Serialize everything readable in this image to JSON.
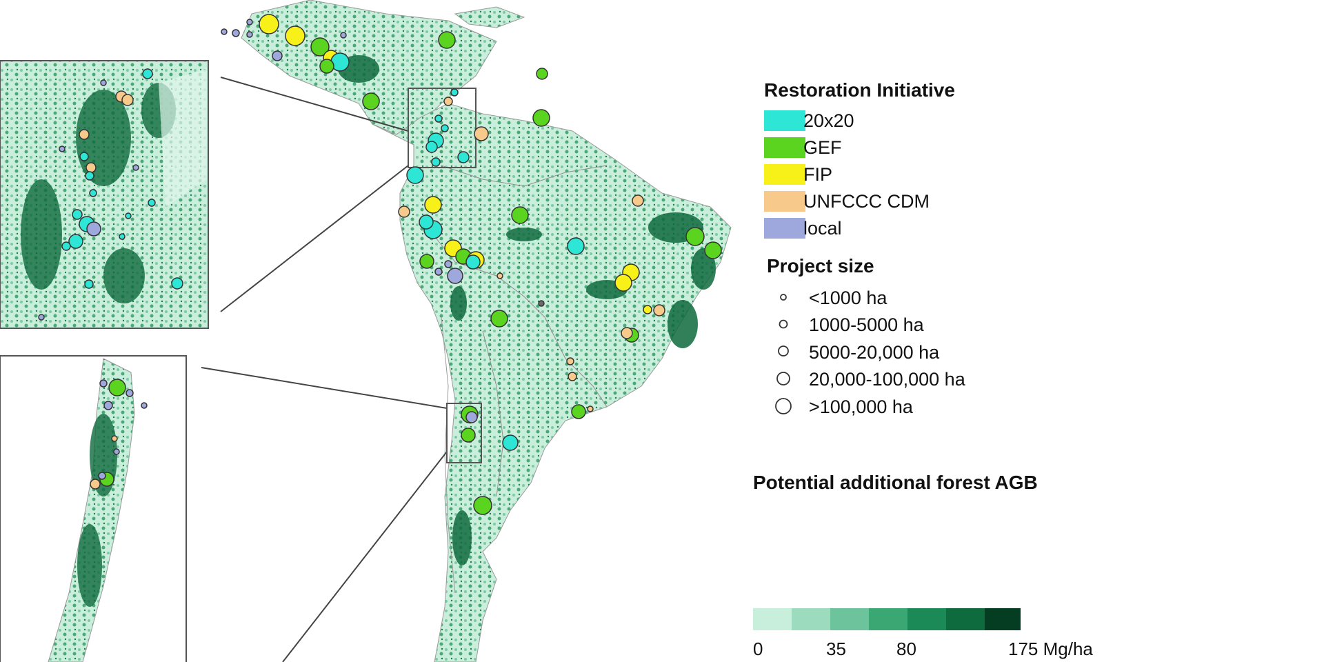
{
  "legend": {
    "initiative_title": "Restoration Initiative",
    "initiatives": [
      {
        "label": "20x20",
        "color": "#2ee6d6"
      },
      {
        "label": "GEF",
        "color": "#5bd41f"
      },
      {
        "label": "FIP",
        "color": "#f7f019"
      },
      {
        "label": "UNFCCC CDM",
        "color": "#f7c98a"
      },
      {
        "label": "local",
        "color": "#9fa8dd"
      }
    ],
    "size_title": "Project size",
    "sizes": [
      "<1000 ha",
      "1000-5000 ha",
      "5000-20,000 ha",
      "20,000-100,000 ha",
      ">100,000 ha"
    ],
    "agb_title": "Potential additional forest AGB",
    "agb_colors": [
      "#c8eedc",
      "#9ddbbf",
      "#6cc39c",
      "#3ba874",
      "#1c8a56",
      "#0d6b3e",
      "#043d22"
    ],
    "agb_ticks": [
      "0",
      "35",
      "80",
      "175 Mg/ha"
    ]
  }
}
